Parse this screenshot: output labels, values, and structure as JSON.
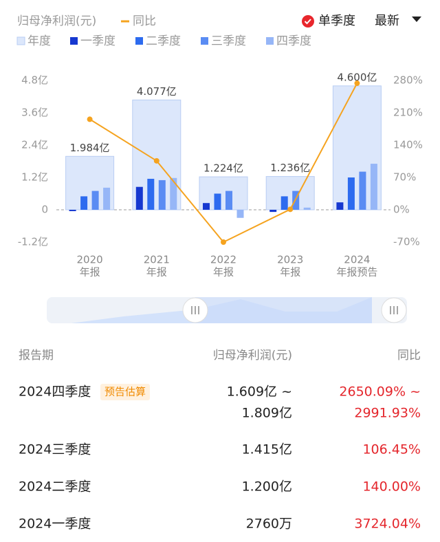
{
  "header": {
    "metric_label": "归母净利润(元)",
    "single_quarter": "单季度",
    "sort": "最新"
  },
  "chart_data": {
    "type": "bar",
    "categories": [
      "2020",
      "2021",
      "2022",
      "2023",
      "2024"
    ],
    "category_notes": [
      "年报",
      "年报",
      "年报",
      "年报",
      "年报预告"
    ],
    "series": [
      {
        "name": "年度",
        "color": "#dce7fb",
        "values": [
          1.984,
          4.077,
          1.224,
          1.236,
          4.6
        ],
        "value_labels": [
          "1.984亿",
          "4.077亿",
          "1.224亿",
          "1.236亿",
          "4.600亿"
        ]
      },
      {
        "name": "一季度",
        "color": "#1638d0",
        "values": [
          -0.05,
          0.85,
          0.25,
          -0.08,
          0.276
        ]
      },
      {
        "name": "二季度",
        "color": "#2d6bef",
        "values": [
          0.5,
          1.15,
          0.6,
          0.5,
          1.2
        ]
      },
      {
        "name": "三季度",
        "color": "#5a8cf3",
        "values": [
          0.7,
          1.1,
          0.7,
          0.7,
          1.415
        ]
      },
      {
        "name": "四季度",
        "color": "#96b6f7",
        "values": [
          0.82,
          1.18,
          -0.3,
          0.08,
          1.709
        ]
      },
      {
        "name": "同比",
        "type": "line",
        "axis": "y2",
        "color": "#f5a31f",
        "values": [
          196,
          106,
          -70,
          1,
          274
        ]
      }
    ],
    "ylim": [
      -1.2,
      4.8
    ],
    "yticks": [
      {
        "value": 4.8,
        "label": "4.8亿"
      },
      {
        "value": 3.6,
        "label": "3.6亿"
      },
      {
        "value": 2.4,
        "label": "2.4亿"
      },
      {
        "value": 1.2,
        "label": "1.2亿"
      },
      0,
      {
        "value": -1.2,
        "label": "-1.2亿"
      }
    ],
    "y2lim": [
      -70,
      280
    ],
    "y2ticks": [
      {
        "value": 280,
        "label": "280%"
      },
      {
        "value": 210,
        "label": "210%"
      },
      {
        "value": 140,
        "label": "140%"
      },
      {
        "value": 70,
        "label": "70%"
      },
      {
        "value": 0,
        "label": "0%"
      },
      {
        "value": -70,
        "label": "-70%"
      }
    ]
  },
  "table": {
    "headers": [
      "报告期",
      "归母净利润(元)",
      "同比"
    ],
    "rows": [
      {
        "period": "2024四季度",
        "tag": "预告估算",
        "value": [
          "1.609亿 ~",
          "1.809亿"
        ],
        "yoy": [
          "2650.09% ~",
          "2991.93%"
        ]
      },
      {
        "period": "2024三季度",
        "value": [
          "1.415亿"
        ],
        "yoy": [
          "106.45%"
        ]
      },
      {
        "period": "2024二季度",
        "value": [
          "1.200亿"
        ],
        "yoy": [
          "140.00%"
        ]
      },
      {
        "period": "2024一季度",
        "value": [
          "2760万"
        ],
        "yoy": [
          "3724.04%"
        ]
      }
    ]
  }
}
